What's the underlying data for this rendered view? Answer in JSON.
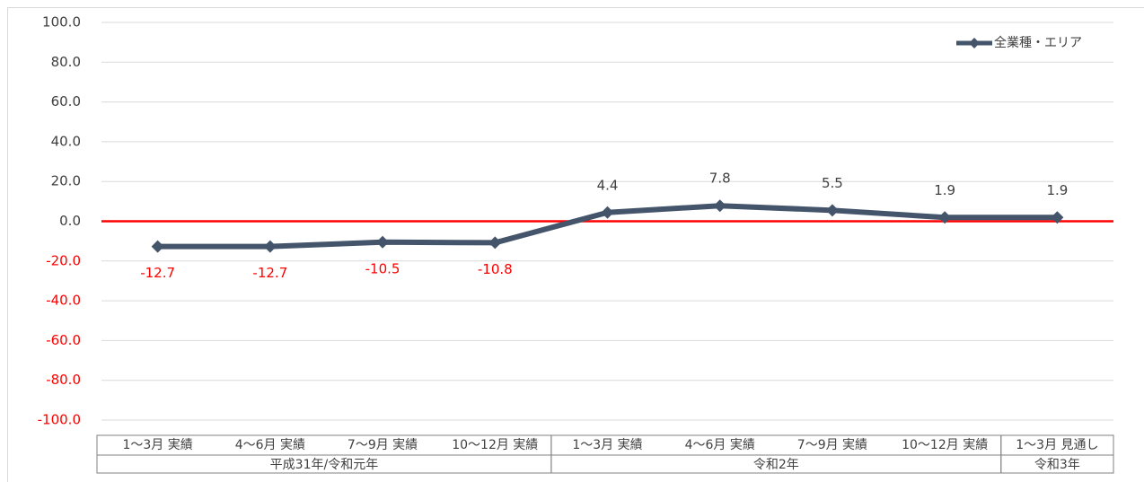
{
  "chart_data": {
    "type": "line",
    "categories": [
      "1～3月 実績",
      "4～6月 実績",
      "7～9月 実績",
      "10～12月 実績",
      "1～3月 実績",
      "4～6月 実績",
      "7～9月 実績",
      "10～12月 実績",
      "1～3月 見通し"
    ],
    "groups": [
      {
        "label": "平成31年/令和元年",
        "span": 4
      },
      {
        "label": "令和2年",
        "span": 4
      },
      {
        "label": "令和3年",
        "span": 1
      }
    ],
    "series": [
      {
        "name": "全業種・エリア",
        "color": "#44546a",
        "values": [
          -12.7,
          -12.7,
          -10.5,
          -10.8,
          4.4,
          7.8,
          5.5,
          1.9,
          1.9
        ]
      }
    ],
    "ylim": [
      -100,
      100
    ],
    "yticks": [
      {
        "value": -100,
        "label": "-100.0"
      },
      {
        "value": -80,
        "label": "-80.0"
      },
      {
        "value": -60,
        "label": "-60.0"
      },
      {
        "value": -40,
        "label": "-40.0"
      },
      {
        "value": -20,
        "label": "-20.0"
      },
      {
        "value": 0,
        "label": "0.0"
      },
      {
        "value": 20,
        "label": "20.0"
      },
      {
        "value": 40,
        "label": "40.0"
      },
      {
        "value": 60,
        "label": "60.0"
      },
      {
        "value": 80,
        "label": "80.0"
      },
      {
        "value": 100,
        "label": "100.0"
      }
    ],
    "grid": true,
    "reference_line": {
      "value": 0,
      "color": "#ff0000"
    },
    "negative_color": "#ff0000",
    "legend": "upper right"
  }
}
